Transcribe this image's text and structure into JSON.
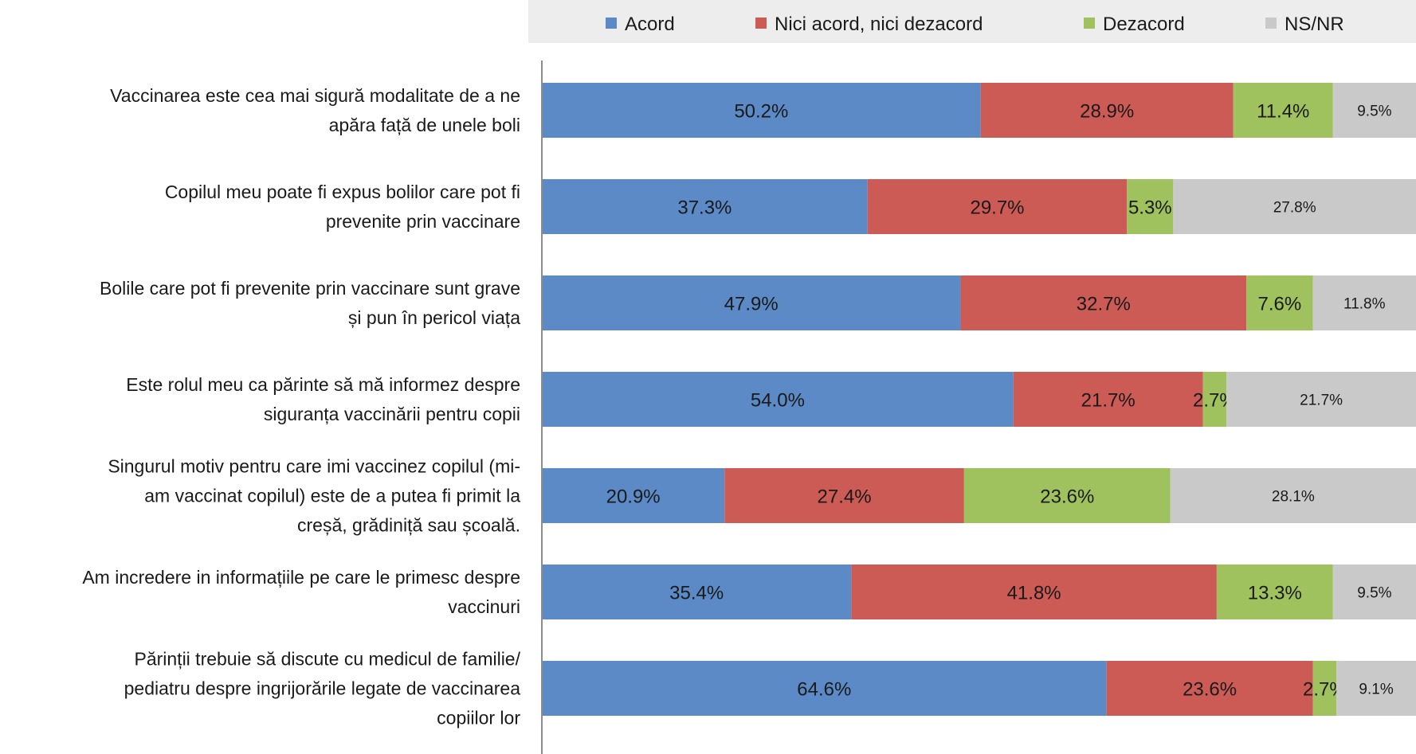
{
  "chart_data": {
    "type": "bar",
    "orientation": "horizontal",
    "stacked": true,
    "legend_position": "top",
    "grid": false,
    "categories": [
      [
        "Vaccinarea este cea mai sigură modalitate de a ne",
        "apăra față de unele boli"
      ],
      [
        "Copilul meu poate fi  expus  bolilor care pot fi",
        "prevenite prin vaccinare"
      ],
      [
        "Bolile care pot fi prevenite prin vaccinare sunt grave",
        "și pun în pericol viața"
      ],
      [
        "Este rolul meu ca părinte să mă informez despre",
        "siguranța vaccinării pentru copii"
      ],
      [
        "Singurul motiv pentru care imi vaccinez copilul (mi-",
        "am vaccinat copilul) este  de a putea fi primit  la",
        "creșă, grădiniță sau școală."
      ],
      [
        "Am incredere in informațiile pe care le primesc despre",
        "vaccinuri"
      ],
      [
        "Părinții trebuie să discute cu medicul de familie/",
        "pediatru despre ingrijorările legate de vaccinarea",
        "copiilor lor"
      ]
    ],
    "series": [
      {
        "name": "Acord",
        "color": "#5b8ac6",
        "values": [
          50.2,
          37.3,
          47.9,
          54.0,
          20.9,
          35.4,
          64.6
        ],
        "labels": [
          "50.2%",
          "37.3%",
          "47.9%",
          "54.0%",
          "20.9%",
          "35.4%",
          "64.6%"
        ]
      },
      {
        "name": "Nici acord, nici dezacord",
        "color": "#cc5a55",
        "values": [
          28.9,
          29.7,
          32.7,
          21.7,
          27.4,
          41.8,
          23.6
        ],
        "labels": [
          "28.9%",
          "29.7%",
          "32.7%",
          "21.7%",
          "27.4%",
          "41.8%",
          "23.6%"
        ]
      },
      {
        "name": "Dezacord",
        "color": "#9fc25e",
        "values": [
          11.4,
          5.3,
          7.6,
          2.7,
          23.6,
          13.3,
          2.7
        ],
        "labels": [
          "11.4%",
          "5.3%",
          "7.6%",
          "2.7%",
          "23.6%",
          "13.3%",
          "2.7%"
        ]
      },
      {
        "name": "NS/NR",
        "color": "#c9c9c9",
        "values": [
          9.5,
          27.8,
          11.8,
          21.7,
          28.1,
          9.5,
          9.1
        ],
        "labels": [
          "9.5%",
          "27.8%",
          "11.8%",
          "21.7%",
          "28.1%",
          "9.5%",
          "9.1%"
        ]
      }
    ]
  }
}
